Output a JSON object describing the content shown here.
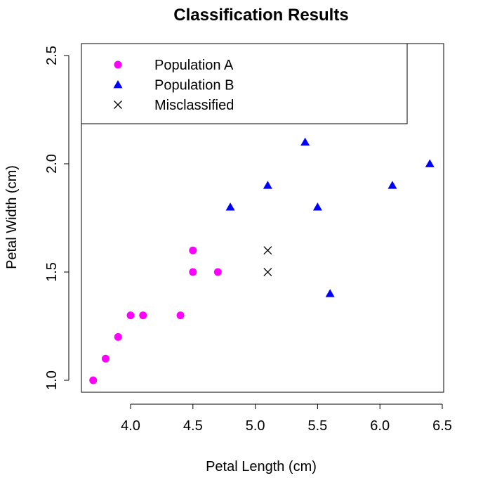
{
  "chart_data": {
    "type": "scatter",
    "title": "Classification Results",
    "xlabel": "Petal Length (cm)",
    "ylabel": "Petal Width (cm)",
    "xlim": [
      3.7,
      6.4
    ],
    "ylim": [
      1.0,
      2.5
    ],
    "x_ticks": [
      "4.0",
      "4.5",
      "5.0",
      "5.5",
      "6.0",
      "6.5"
    ],
    "y_ticks": [
      "1.0",
      "1.5",
      "2.0",
      "2.5"
    ],
    "grid": false,
    "legend_position": "top-left",
    "series": [
      {
        "name": "Population A",
        "marker": "circle",
        "color": "#ff00ff",
        "points": [
          {
            "x": 3.7,
            "y": 1.0
          },
          {
            "x": 3.8,
            "y": 1.1
          },
          {
            "x": 3.9,
            "y": 1.2
          },
          {
            "x": 4.0,
            "y": 1.3
          },
          {
            "x": 4.1,
            "y": 1.3
          },
          {
            "x": 4.4,
            "y": 1.3
          },
          {
            "x": 4.5,
            "y": 1.5
          },
          {
            "x": 4.5,
            "y": 1.6
          },
          {
            "x": 4.7,
            "y": 1.5
          }
        ]
      },
      {
        "name": "Population B",
        "marker": "triangle",
        "color": "#0000ff",
        "points": [
          {
            "x": 4.8,
            "y": 1.8
          },
          {
            "x": 5.1,
            "y": 1.9
          },
          {
            "x": 5.4,
            "y": 2.1
          },
          {
            "x": 5.5,
            "y": 1.8
          },
          {
            "x": 5.6,
            "y": 1.4
          },
          {
            "x": 6.1,
            "y": 1.9
          },
          {
            "x": 6.4,
            "y": 2.0
          }
        ]
      },
      {
        "name": "Misclassified",
        "marker": "cross",
        "color": "#000000",
        "points": [
          {
            "x": 5.1,
            "y": 1.6
          },
          {
            "x": 5.1,
            "y": 1.5
          }
        ]
      }
    ]
  }
}
